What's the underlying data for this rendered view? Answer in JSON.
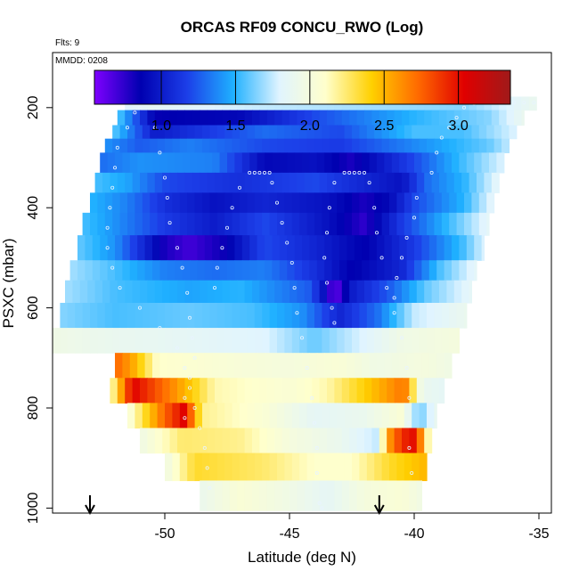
{
  "chart_data": {
    "type": "heatmap",
    "title": "ORCAS RF09 CONCU_RWO (Log)",
    "flights_label": "Flts: 9",
    "date_label": "MMDD: 0208",
    "xlabel": "Latitude (deg N)",
    "ylabel": "PSXC (mbar)",
    "xlim": [
      -54.5,
      -34.5
    ],
    "ylim": [
      1010,
      90
    ],
    "y_reversed": true,
    "x_ticks": [
      -50,
      -45,
      -40,
      -35
    ],
    "x_tick_labels": [
      "-50",
      "-45",
      "-40",
      "-35"
    ],
    "y_ticks": [
      200,
      400,
      600,
      800,
      1000
    ],
    "y_tick_labels": [
      "200",
      "400",
      "600",
      "800",
      "1000"
    ],
    "colorbar": {
      "range": [
        0.55,
        3.35
      ],
      "ticks": [
        1.0,
        1.5,
        2.0,
        2.5,
        3.0
      ],
      "tick_labels": [
        "1.0",
        "1.5",
        "2.0",
        "2.5",
        "3.0"
      ],
      "stops": [
        "#7f00ff",
        "#0000b0",
        "#1c3ee8",
        "#1fb0ff",
        "#e0f4ff",
        "#ffffcc",
        "#ffd000",
        "#ff6a00",
        "#e00000",
        "#a01a1a"
      ]
    },
    "markers": [
      {
        "x": -53.0,
        "label": "↓"
      },
      {
        "x": -41.4,
        "label": "↓"
      }
    ],
    "layers": [
      {
        "p_top": 178,
        "p_bot": 205,
        "x0": -51.6,
        "x1": -35.1,
        "segments": [
          [
            -51.6,
            1.8
          ],
          [
            -50.6,
            1.85
          ],
          [
            -46,
            1.75
          ],
          [
            -42,
            1.7
          ],
          [
            -38,
            1.65
          ],
          [
            -35.1,
            1.9
          ]
        ]
      },
      {
        "p_top": 205,
        "p_bot": 235,
        "x0": -51.9,
        "x1": -35.6,
        "segments": [
          [
            -51.9,
            1.6
          ],
          [
            -50.4,
            0.85
          ],
          [
            -47,
            0.9
          ],
          [
            -44,
            1.2
          ],
          [
            -40,
            1.5
          ],
          [
            -37,
            1.65
          ],
          [
            -35.6,
            1.9
          ]
        ]
      },
      {
        "p_top": 235,
        "p_bot": 262,
        "x0": -52.1,
        "x1": -35.9,
        "segments": [
          [
            -52.1,
            1.6
          ],
          [
            -50.4,
            1.0
          ],
          [
            -46,
            1.3
          ],
          [
            -43,
            1.2
          ],
          [
            -40,
            1.55
          ],
          [
            -38,
            1.55
          ],
          [
            -35.9,
            1.8
          ]
        ]
      },
      {
        "p_top": 262,
        "p_bot": 290,
        "x0": -52.4,
        "x1": -36.2,
        "segments": [
          [
            -52.4,
            1.4
          ],
          [
            -51,
            1.25
          ],
          [
            -49,
            1.35
          ],
          [
            -46,
            1.2
          ],
          [
            -43,
            1.15
          ],
          [
            -41,
            1.3
          ],
          [
            -39,
            1.45
          ],
          [
            -37,
            1.6
          ],
          [
            -36.2,
            1.75
          ]
        ]
      },
      {
        "p_top": 290,
        "p_bot": 330,
        "x0": -52.6,
        "x1": -36.4,
        "segments": [
          [
            -52.6,
            1.3
          ],
          [
            -51,
            1.4
          ],
          [
            -48,
            1.35
          ],
          [
            -46,
            0.9
          ],
          [
            -44,
            0.95
          ],
          [
            -42.5,
            0.8
          ],
          [
            -40,
            1.2
          ],
          [
            -38,
            1.55
          ],
          [
            -36.4,
            1.8
          ]
        ]
      },
      {
        "p_top": 330,
        "p_bot": 370,
        "x0": -52.8,
        "x1": -36.6,
        "segments": [
          [
            -52.8,
            1.55
          ],
          [
            -51.5,
            1.45
          ],
          [
            -50,
            1.2
          ],
          [
            -47,
            1.1
          ],
          [
            -44,
            1.2
          ],
          [
            -42,
            1.05
          ],
          [
            -40.5,
            0.95
          ],
          [
            -39.5,
            1.3
          ],
          [
            -38,
            1.5
          ],
          [
            -36.6,
            1.85
          ]
        ]
      },
      {
        "p_top": 370,
        "p_bot": 410,
        "x0": -53.0,
        "x1": -36.8,
        "segments": [
          [
            -53.0,
            1.5
          ],
          [
            -51.5,
            1.35
          ],
          [
            -50,
            1.1
          ],
          [
            -48,
            0.95
          ],
          [
            -46,
            1.05
          ],
          [
            -43.5,
            0.95
          ],
          [
            -42,
            0.8
          ],
          [
            -41,
            0.9
          ],
          [
            -40,
            1.2
          ],
          [
            -38,
            1.5
          ],
          [
            -36.8,
            1.85
          ]
        ]
      },
      {
        "p_top": 410,
        "p_bot": 455,
        "x0": -53.3,
        "x1": -37.0,
        "segments": [
          [
            -53.3,
            1.55
          ],
          [
            -52,
            1.4
          ],
          [
            -50,
            1.15
          ],
          [
            -48,
            1.0
          ],
          [
            -46,
            1.2
          ],
          [
            -43.5,
            0.95
          ],
          [
            -42,
            0.75
          ],
          [
            -40.5,
            1.15
          ],
          [
            -38.5,
            1.55
          ],
          [
            -37,
            1.85
          ]
        ]
      },
      {
        "p_top": 455,
        "p_bot": 505,
        "x0": -53.5,
        "x1": -37.2,
        "segments": [
          [
            -53.5,
            1.6
          ],
          [
            -52,
            1.4
          ],
          [
            -50,
            0.8
          ],
          [
            -49,
            0.7
          ],
          [
            -47.5,
            0.85
          ],
          [
            -46,
            1.2
          ],
          [
            -44,
            1.05
          ],
          [
            -42,
            0.85
          ],
          [
            -40,
            1.15
          ],
          [
            -38,
            1.55
          ],
          [
            -37.2,
            1.8
          ]
        ]
      },
      {
        "p_top": 505,
        "p_bot": 545,
        "x0": -53.8,
        "x1": -37.5,
        "segments": [
          [
            -53.8,
            1.7
          ],
          [
            -52,
            1.55
          ],
          [
            -50,
            1.35
          ],
          [
            -48,
            1.3
          ],
          [
            -46,
            1.35
          ],
          [
            -44,
            1.1
          ],
          [
            -42.5,
            0.85
          ],
          [
            -40.5,
            1.05
          ],
          [
            -39,
            1.55
          ],
          [
            -37.5,
            1.85
          ]
        ]
      },
      {
        "p_top": 545,
        "p_bot": 590,
        "x0": -54.0,
        "x1": -37.7,
        "segments": [
          [
            -54.0,
            1.7
          ],
          [
            -52,
            1.55
          ],
          [
            -49,
            1.45
          ],
          [
            -47,
            1.5
          ],
          [
            -44.2,
            1.25
          ],
          [
            -43.7,
            1.0
          ],
          [
            -43.2,
            0.6
          ],
          [
            -42.5,
            1.0
          ],
          [
            -41,
            1.25
          ],
          [
            -39.5,
            1.6
          ],
          [
            -37.7,
            1.85
          ]
        ]
      },
      {
        "p_top": 590,
        "p_bot": 640,
        "x0": -54.2,
        "x1": -37.9,
        "segments": [
          [
            -54.2,
            1.65
          ],
          [
            -52,
            1.55
          ],
          [
            -49,
            1.6
          ],
          [
            -46.5,
            1.55
          ],
          [
            -44.5,
            1.4
          ],
          [
            -43,
            1.05
          ],
          [
            -41.5,
            1.3
          ],
          [
            -40,
            1.75
          ],
          [
            -37.9,
            1.9
          ]
        ]
      },
      {
        "p_top": 640,
        "p_bot": 690,
        "x0": -54.5,
        "x1": -38.2,
        "segments": [
          [
            -54.5,
            1.95
          ],
          [
            -52.5,
            1.9
          ],
          [
            -49,
            1.85
          ],
          [
            -46,
            1.8
          ],
          [
            -44,
            1.6
          ],
          [
            -42.5,
            1.75
          ],
          [
            -40.5,
            1.95
          ],
          [
            -38.2,
            2.0
          ]
        ]
      },
      {
        "p_top": 690,
        "p_bot": 740,
        "x0": -52.0,
        "x1": -38.5,
        "segments": [
          [
            -52.0,
            2.75
          ],
          [
            -51.3,
            2.55
          ],
          [
            -50.3,
            2.1
          ],
          [
            -48,
            2.05
          ],
          [
            -45,
            2.0
          ],
          [
            -43,
            2.05
          ],
          [
            -41.5,
            1.95
          ],
          [
            -39.5,
            2.0
          ],
          [
            -38.5,
            1.95
          ]
        ]
      },
      {
        "p_top": 740,
        "p_bot": 790,
        "x0": -52.2,
        "x1": -38.8,
        "segments": [
          [
            -52.2,
            2.05
          ],
          [
            -51.3,
            3.05
          ],
          [
            -49.0,
            2.45
          ],
          [
            -48,
            2.15
          ],
          [
            -45,
            2.05
          ],
          [
            -43.5,
            2.15
          ],
          [
            -41.5,
            2.5
          ],
          [
            -40.4,
            2.7
          ],
          [
            -39.7,
            1.9
          ],
          [
            -38.8,
            1.85
          ]
        ]
      },
      {
        "p_top": 790,
        "p_bot": 840,
        "x0": -51.5,
        "x1": -39.1,
        "segments": [
          [
            -51.5,
            2.0
          ],
          [
            -50.0,
            2.75
          ],
          [
            -49.2,
            3.05
          ],
          [
            -48.5,
            2.2
          ],
          [
            -46,
            2.05
          ],
          [
            -44,
            1.85
          ],
          [
            -42,
            1.9
          ],
          [
            -40.5,
            2.05
          ],
          [
            -39.8,
            1.6
          ],
          [
            -39.1,
            1.9
          ]
        ]
      },
      {
        "p_top": 840,
        "p_bot": 890,
        "x0": -51.0,
        "x1": -39.3,
        "segments": [
          [
            -51.0,
            1.95
          ],
          [
            -49.3,
            2.25
          ],
          [
            -47,
            2.2
          ],
          [
            -45,
            2.0
          ],
          [
            -43,
            1.9
          ],
          [
            -41.5,
            1.75
          ],
          [
            -40.9,
            2.7
          ],
          [
            -40.1,
            3.05
          ],
          [
            -39.6,
            2.5
          ],
          [
            -39.3,
            1.8
          ]
        ]
      },
      {
        "p_top": 890,
        "p_bot": 945,
        "x0": -50.0,
        "x1": -39.5,
        "segments": [
          [
            -50.0,
            1.95
          ],
          [
            -48.8,
            2.35
          ],
          [
            -46,
            2.25
          ],
          [
            -44,
            2.1
          ],
          [
            -42.5,
            2.1
          ],
          [
            -41,
            2.35
          ],
          [
            -39.5,
            2.5
          ]
        ]
      },
      {
        "p_top": 945,
        "p_bot": 1005,
        "x0": -48.6,
        "x1": -39.7,
        "segments": [
          [
            -48.6,
            1.9
          ],
          [
            -47,
            2.05
          ],
          [
            -45,
            1.95
          ],
          [
            -43.5,
            1.85
          ],
          [
            -42,
            2.0
          ],
          [
            -40.5,
            2.05
          ],
          [
            -39.7,
            1.95
          ]
        ]
      }
    ],
    "track": [
      [
        -50.8,
        190
      ],
      [
        -51.0,
        200
      ],
      [
        -51.2,
        210
      ],
      [
        -51.5,
        240
      ],
      [
        -51.9,
        280
      ],
      [
        -52.0,
        320
      ],
      [
        -52.1,
        360
      ],
      [
        -52.2,
        400
      ],
      [
        -52.3,
        440
      ],
      [
        -52.3,
        480
      ],
      [
        -52.1,
        520
      ],
      [
        -51.8,
        560
      ],
      [
        -51.0,
        600
      ],
      [
        -50.2,
        640
      ],
      [
        -49.5,
        680
      ],
      [
        -49.2,
        720
      ],
      [
        -49.0,
        760
      ],
      [
        -48.8,
        800
      ],
      [
        -48.6,
        840
      ],
      [
        -48.4,
        880
      ],
      [
        -48.3,
        920
      ],
      [
        -48.2,
        960
      ],
      [
        -50.6,
        190
      ],
      [
        -50.4,
        240
      ],
      [
        -50.2,
        290
      ],
      [
        -50.0,
        340
      ],
      [
        -49.9,
        380
      ],
      [
        -49.8,
        430
      ],
      [
        -49.5,
        480
      ],
      [
        -49.3,
        520
      ],
      [
        -49.1,
        570
      ],
      [
        -49.0,
        620
      ],
      [
        -48.9,
        660
      ],
      [
        -48.8,
        700
      ],
      [
        -49.0,
        740
      ],
      [
        -49.2,
        780
      ],
      [
        -49.2,
        820
      ],
      [
        -46.6,
        330
      ],
      [
        -46.4,
        330
      ],
      [
        -46.2,
        330
      ],
      [
        -46.0,
        330
      ],
      [
        -45.8,
        330
      ],
      [
        -47.0,
        360
      ],
      [
        -47.3,
        400
      ],
      [
        -47.5,
        440
      ],
      [
        -47.7,
        480
      ],
      [
        -47.9,
        520
      ],
      [
        -48.0,
        560
      ],
      [
        -45.7,
        350
      ],
      [
        -45.5,
        390
      ],
      [
        -45.3,
        430
      ],
      [
        -45.1,
        470
      ],
      [
        -44.9,
        510
      ],
      [
        -44.8,
        560
      ],
      [
        -44.7,
        610
      ],
      [
        -44.5,
        660
      ],
      [
        -44.3,
        720
      ],
      [
        -44.1,
        780
      ],
      [
        -44.0,
        830
      ],
      [
        -43.9,
        880
      ],
      [
        -43.9,
        930
      ],
      [
        -43.8,
        990
      ],
      [
        -43.7,
        1000
      ],
      [
        -42.8,
        330
      ],
      [
        -42.6,
        330
      ],
      [
        -42.4,
        330
      ],
      [
        -42.2,
        330
      ],
      [
        -42.0,
        330
      ],
      [
        -43.2,
        350
      ],
      [
        -43.4,
        400
      ],
      [
        -43.5,
        450
      ],
      [
        -43.6,
        500
      ],
      [
        -43.5,
        550
      ],
      [
        -43.3,
        600
      ],
      [
        -43.2,
        630
      ],
      [
        -41.8,
        350
      ],
      [
        -41.6,
        400
      ],
      [
        -41.5,
        450
      ],
      [
        -41.3,
        500
      ],
      [
        -41.1,
        560
      ],
      [
        -40.8,
        610
      ],
      [
        -40.5,
        660
      ],
      [
        -40.3,
        720
      ],
      [
        -40.2,
        780
      ],
      [
        -40.2,
        830
      ],
      [
        -40.2,
        880
      ],
      [
        -40.1,
        930
      ],
      [
        -39.9,
        380
      ],
      [
        -40.0,
        420
      ],
      [
        -40.3,
        460
      ],
      [
        -40.5,
        500
      ],
      [
        -40.7,
        540
      ],
      [
        -40.8,
        580
      ],
      [
        -39.3,
        330
      ],
      [
        -39.1,
        290
      ],
      [
        -38.9,
        260
      ],
      [
        -38.6,
        240
      ],
      [
        -38.3,
        220
      ],
      [
        -38.0,
        200
      ],
      [
        -37.6,
        192
      ],
      [
        -37.2,
        190
      ],
      [
        -36.8,
        190
      ],
      [
        -36.4,
        190
      ],
      [
        -36.0,
        190
      ],
      [
        -35.6,
        190
      ],
      [
        -35.2,
        190
      ]
    ]
  }
}
